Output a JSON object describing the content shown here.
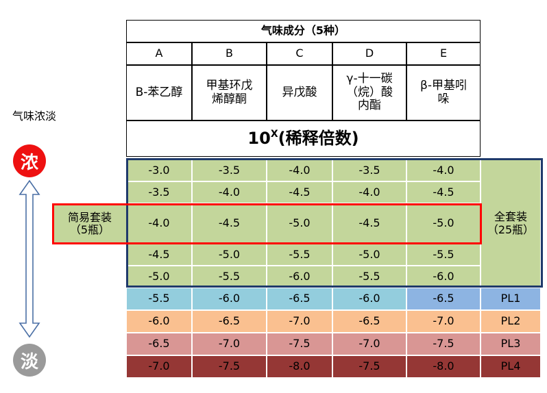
{
  "side": {
    "label": "气味浓淡",
    "strong": "浓",
    "weak": "淡",
    "strong_color": "#ee1111",
    "weak_color": "#9a9a9a"
  },
  "table": {
    "title": "气味成分（5种）",
    "letters": [
      "A",
      "B",
      "C",
      "D",
      "E"
    ],
    "components": [
      "B-苯乙醇",
      "甲基环戊\n烯醇酮",
      "异戊酸",
      "γ-十一碳\n（烷）酸\n内酯",
      "β-甲基吲\n哚"
    ],
    "dilution_base": "10",
    "dilution_exp": "X",
    "dilution_text": "(稀释倍数)",
    "rows": [
      [
        "-3.0",
        "-3.5",
        "-4.0",
        "-3.5",
        "-4.0"
      ],
      [
        "-3.5",
        "-4.0",
        "-4.5",
        "-4.0",
        "-4.5"
      ],
      [
        "-4.0",
        "-4.5",
        "-5.0",
        "-4.5",
        "-5.0"
      ],
      [
        "-4.5",
        "-5.0",
        "-5.5",
        "-5.0",
        "-5.5"
      ],
      [
        "-5.0",
        "-5.5",
        "-6.0",
        "-5.5",
        "-6.0"
      ],
      [
        "-5.5",
        "-6.0",
        "-6.5",
        "-6.0",
        "-6.5"
      ],
      [
        "-6.0",
        "-6.5",
        "-7.0",
        "-6.5",
        "-7.0"
      ],
      [
        "-6.5",
        "-7.0",
        "-7.5",
        "-7.0",
        "-7.5"
      ],
      [
        "-7.0",
        "-7.5",
        "-8.0",
        "-7.5",
        "-8.0"
      ]
    ],
    "full_set": "全套装\n（25瓶）",
    "simple_set": "简易套装\n（5瓶）",
    "pl_labels": [
      "PL1",
      "PL2",
      "PL3",
      "PL4"
    ]
  }
}
